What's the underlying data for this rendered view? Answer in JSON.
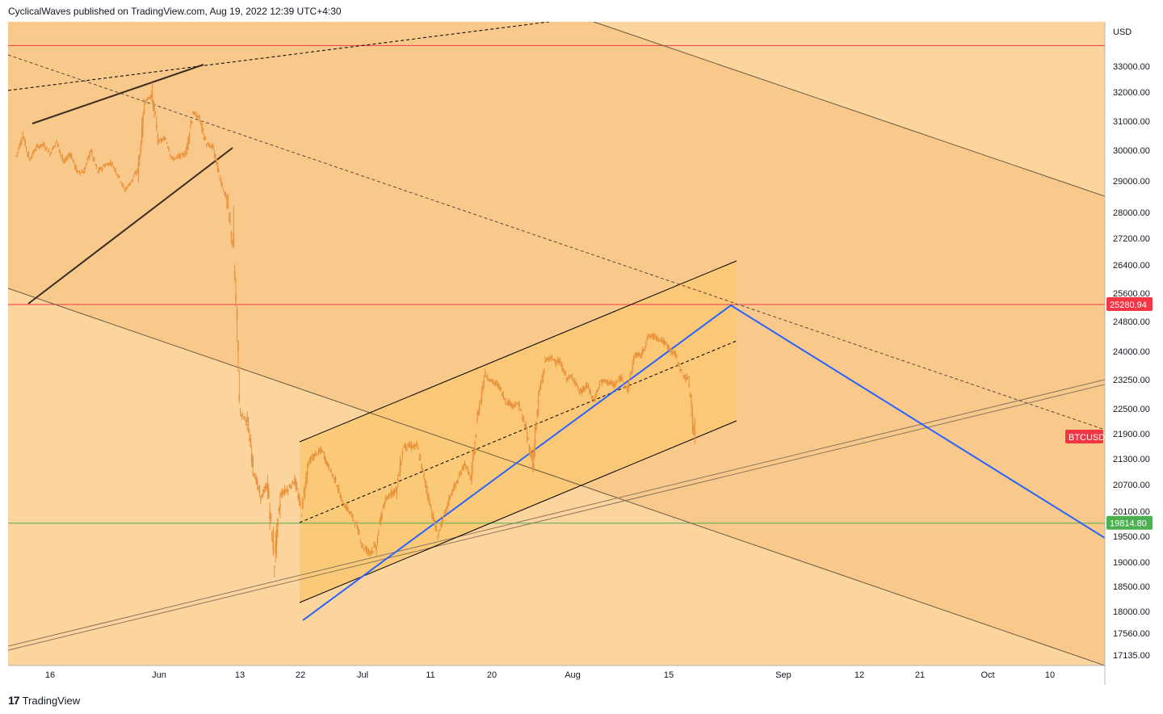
{
  "header": {
    "attribution": "CyclicalWaves published on TradingView.com, Aug 19, 2022 12:39 UTC+4:30"
  },
  "footer": {
    "brand": "TradingView",
    "logo_icon": "tradingview-logo-icon"
  },
  "colors": {
    "background_light": "#fcd49d",
    "background_band": "#f8c98b",
    "channel_fill": "#fac872",
    "candle": "#e8913a",
    "resistance_red": "#f23645",
    "support_green": "#4caf50",
    "projection_blue": "#2962ff",
    "symbol_label": "#f23645",
    "support_label": "#4caf50"
  },
  "chart_data": {
    "type": "line",
    "symbol": "BTCUSD",
    "currency": "USD",
    "ylim": [
      17000,
      34000
    ],
    "y_ticks": [
      "33000.00",
      "32000.00",
      "31000.00",
      "30000.00",
      "29000.00",
      "28000.00",
      "27200.00",
      "26400.00",
      "25600.00",
      "24800.00",
      "24000.00",
      "23250.00",
      "22500.00",
      "21900.00",
      "21300.00",
      "20700.00",
      "20100.00",
      "19500.00",
      "19000.00",
      "18500.00",
      "18000.00",
      "17560.00",
      "17135.00"
    ],
    "x_ticks": [
      "16",
      "Jun",
      "13",
      "22",
      "Jul",
      "11",
      "20",
      "Aug",
      "15",
      "Sep",
      "12",
      "21",
      "Oct",
      "10"
    ],
    "x_range": [
      "2022-05-11",
      "2022-10-15"
    ],
    "price_labels": [
      {
        "name": "resistance",
        "value": "25280.94"
      },
      {
        "name": "symbol",
        "value": "BTCUSD"
      },
      {
        "name": "support",
        "value": "19814.80"
      }
    ],
    "horizontal_levels": {
      "resistance": 25280.94,
      "support": 19814.8,
      "top_red": 33800
    },
    "series": [
      {
        "x": [
          "2022-05-11",
          "2022-05-12",
          "2022-05-13",
          "2022-05-14",
          "2022-05-15",
          "2022-05-16",
          "2022-05-17",
          "2022-05-18",
          "2022-05-19",
          "2022-05-20",
          "2022-05-21",
          "2022-05-22",
          "2022-05-23",
          "2022-05-24",
          "2022-05-25",
          "2022-05-26",
          "2022-05-27",
          "2022-05-28",
          "2022-05-29",
          "2022-05-30",
          "2022-05-31",
          "2022-06-01",
          "2022-06-02",
          "2022-06-03",
          "2022-06-04",
          "2022-06-05",
          "2022-06-06",
          "2022-06-07",
          "2022-06-08",
          "2022-06-09",
          "2022-06-10",
          "2022-06-11",
          "2022-06-12",
          "2022-06-13",
          "2022-06-14",
          "2022-06-15",
          "2022-06-16",
          "2022-06-17",
          "2022-06-18",
          "2022-06-19",
          "2022-06-20",
          "2022-06-21",
          "2022-06-22",
          "2022-06-23",
          "2022-06-24",
          "2022-06-25",
          "2022-06-26",
          "2022-06-27",
          "2022-06-28",
          "2022-06-29",
          "2022-06-30",
          "2022-07-01",
          "2022-07-02",
          "2022-07-03",
          "2022-07-04",
          "2022-07-05",
          "2022-07-06",
          "2022-07-07",
          "2022-07-08",
          "2022-07-09",
          "2022-07-10",
          "2022-07-11",
          "2022-07-12",
          "2022-07-13",
          "2022-07-14",
          "2022-07-15",
          "2022-07-16",
          "2022-07-17",
          "2022-07-18",
          "2022-07-19",
          "2022-07-20",
          "2022-07-21",
          "2022-07-22",
          "2022-07-23",
          "2022-07-24",
          "2022-07-25",
          "2022-07-26",
          "2022-07-27",
          "2022-07-28",
          "2022-07-29",
          "2022-07-30",
          "2022-07-31",
          "2022-08-01",
          "2022-08-02",
          "2022-08-03",
          "2022-08-04",
          "2022-08-05",
          "2022-08-06",
          "2022-08-07",
          "2022-08-08",
          "2022-08-09",
          "2022-08-10",
          "2022-08-11",
          "2022-08-12",
          "2022-08-13",
          "2022-08-14",
          "2022-08-15",
          "2022-08-16",
          "2022-08-17",
          "2022-08-18",
          "2022-08-19"
        ],
        "y": [
          29800,
          30500,
          29700,
          30100,
          30200,
          29900,
          30300,
          29600,
          29900,
          29300,
          29300,
          30000,
          29300,
          29500,
          29600,
          29200,
          28700,
          29000,
          29400,
          31700,
          31900,
          30300,
          30400,
          29700,
          29800,
          29900,
          31300,
          31100,
          30200,
          30100,
          29100,
          28400,
          26900,
          22400,
          22200,
          21000,
          20400,
          20700,
          19000,
          20500,
          20600,
          20800,
          20100,
          21200,
          21400,
          21500,
          21100,
          20800,
          20300,
          20100,
          19800,
          19300,
          19200,
          19300,
          20200,
          20500,
          20600,
          21600,
          21600,
          21600,
          20900,
          20200,
          19500,
          20000,
          20500,
          20800,
          21200,
          20800,
          22400,
          23400,
          23200,
          23100,
          22700,
          22600,
          22600,
          22000,
          21200,
          22900,
          23800,
          23800,
          23700,
          23300,
          23300,
          22900,
          23100,
          22700,
          23200,
          23200,
          23100,
          23300,
          23000,
          23900,
          23900,
          24400,
          24400,
          24300,
          24100,
          23900,
          23400,
          23200,
          21500
        ]
      }
    ]
  }
}
